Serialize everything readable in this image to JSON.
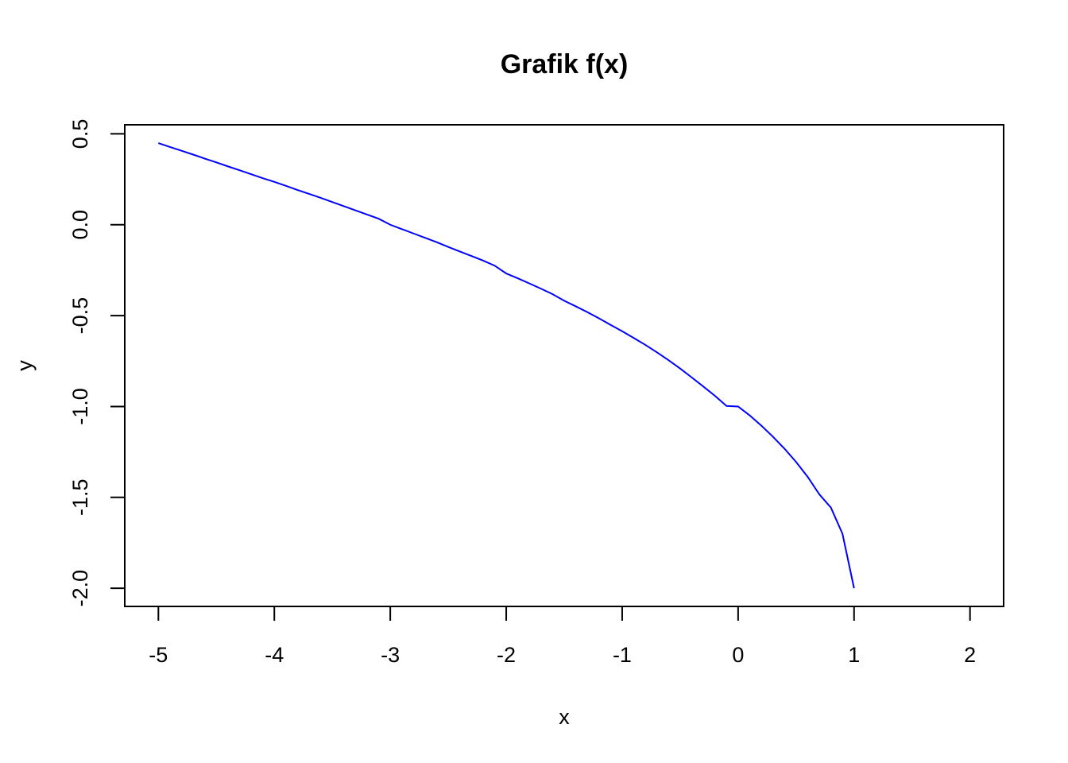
{
  "chart_data": {
    "type": "line",
    "title": "Grafik f(x)",
    "xlabel": "x",
    "ylabel": "y",
    "xlim": [
      -5.29,
      2.29
    ],
    "ylim": [
      -2.1,
      0.55
    ],
    "x_ticks": [
      -5,
      -4,
      -3,
      -2,
      -1,
      0,
      1,
      2
    ],
    "x_tick_labels": [
      "-5",
      "-4",
      "-3",
      "-2",
      "-1",
      "0",
      "1",
      "2"
    ],
    "y_ticks": [
      -2.0,
      -1.5,
      -1.0,
      -0.5,
      0.0,
      0.5
    ],
    "y_tick_labels": [
      "-2.0",
      "-1.5",
      "-1.0",
      "-0.5",
      "0.0",
      "0.5"
    ],
    "grid": false,
    "series": [
      {
        "color": "#0000ff",
        "x": [
          -5,
          -4.9,
          -4.8,
          -4.7,
          -4.6,
          -4.5,
          -4.4,
          -4.3,
          -4.2,
          -4.1,
          -4.0,
          -3.9,
          -3.8,
          -3.7,
          -3.6,
          -3.5,
          -3.4,
          -3.3,
          -3.2,
          -3.1,
          -3.0,
          -2.9,
          -2.8,
          -2.7,
          -2.6,
          -2.5,
          -2.4,
          -2.3,
          -2.2,
          -2.1,
          -2.0,
          -1.9,
          -1.8,
          -1.7,
          -1.6,
          -1.5,
          -1.4,
          -1.3,
          -1.2,
          -1.1,
          -1.0,
          -0.9,
          -0.8,
          -0.7,
          -0.6,
          -0.5,
          -0.4,
          -0.3,
          -0.2,
          -0.1,
          0.0,
          0.1,
          0.2,
          0.3,
          0.4,
          0.5,
          0.6,
          0.7,
          0.8,
          0.9,
          1.0
        ],
        "y": [
          0.449,
          0.428,
          0.407,
          0.386,
          0.364,
          0.343,
          0.321,
          0.3,
          0.278,
          0.256,
          0.236,
          0.214,
          0.191,
          0.17,
          0.148,
          0.125,
          0.102,
          0.079,
          0.056,
          0.033,
          0.0,
          -0.024,
          -0.048,
          -0.072,
          -0.096,
          -0.122,
          -0.147,
          -0.172,
          -0.197,
          -0.225,
          -0.268,
          -0.295,
          -0.323,
          -0.352,
          -0.382,
          -0.418,
          -0.449,
          -0.481,
          -0.515,
          -0.551,
          -0.586,
          -0.623,
          -0.661,
          -0.702,
          -0.745,
          -0.791,
          -0.84,
          -0.89,
          -0.941,
          -0.997,
          -1.0,
          -1.049,
          -1.105,
          -1.166,
          -1.232,
          -1.305,
          -1.387,
          -1.483,
          -1.556,
          -1.7,
          -2.0
        ]
      }
    ]
  }
}
